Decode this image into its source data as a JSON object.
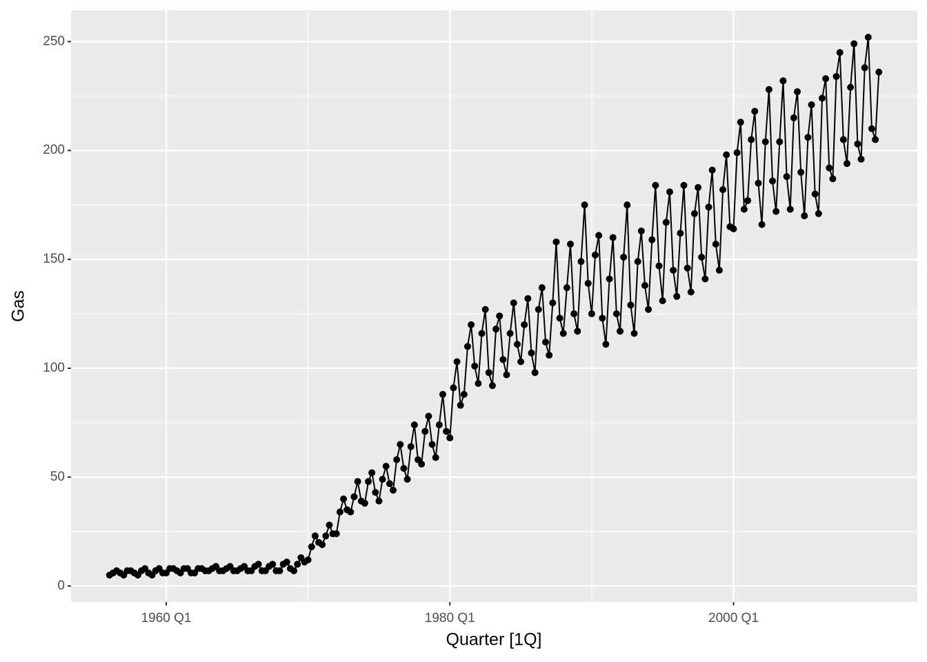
{
  "chart_data": {
    "type": "line",
    "x_label": "Quarter [1Q]",
    "y_label": "Gas",
    "color": "#000000",
    "markers": true,
    "grid": true,
    "x": [
      "1956 Q1",
      "1956 Q2",
      "1956 Q3",
      "1956 Q4",
      "1957 Q1",
      "1957 Q2",
      "1957 Q3",
      "1957 Q4",
      "1958 Q1",
      "1958 Q2",
      "1958 Q3",
      "1958 Q4",
      "1959 Q1",
      "1959 Q2",
      "1959 Q3",
      "1959 Q4",
      "1960 Q1",
      "1960 Q2",
      "1960 Q3",
      "1960 Q4",
      "1961 Q1",
      "1961 Q2",
      "1961 Q3",
      "1961 Q4",
      "1962 Q1",
      "1962 Q2",
      "1962 Q3",
      "1962 Q4",
      "1963 Q1",
      "1963 Q2",
      "1963 Q3",
      "1963 Q4",
      "1964 Q1",
      "1964 Q2",
      "1964 Q3",
      "1964 Q4",
      "1965 Q1",
      "1965 Q2",
      "1965 Q3",
      "1965 Q4",
      "1966 Q1",
      "1966 Q2",
      "1966 Q3",
      "1966 Q4",
      "1967 Q1",
      "1967 Q2",
      "1967 Q3",
      "1967 Q4",
      "1968 Q1",
      "1968 Q2",
      "1968 Q3",
      "1968 Q4",
      "1969 Q1",
      "1969 Q2",
      "1969 Q3",
      "1969 Q4",
      "1970 Q1",
      "1970 Q2",
      "1970 Q3",
      "1970 Q4",
      "1971 Q1",
      "1971 Q2",
      "1971 Q3",
      "1971 Q4",
      "1972 Q1",
      "1972 Q2",
      "1972 Q3",
      "1972 Q4",
      "1973 Q1",
      "1973 Q2",
      "1973 Q3",
      "1973 Q4",
      "1974 Q1",
      "1974 Q2",
      "1974 Q3",
      "1974 Q4",
      "1975 Q1",
      "1975 Q2",
      "1975 Q3",
      "1975 Q4",
      "1976 Q1",
      "1976 Q2",
      "1976 Q3",
      "1976 Q4",
      "1977 Q1",
      "1977 Q2",
      "1977 Q3",
      "1977 Q4",
      "1978 Q1",
      "1978 Q2",
      "1978 Q3",
      "1978 Q4",
      "1979 Q1",
      "1979 Q2",
      "1979 Q3",
      "1979 Q4",
      "1980 Q1",
      "1980 Q2",
      "1980 Q3",
      "1980 Q4",
      "1981 Q1",
      "1981 Q2",
      "1981 Q3",
      "1981 Q4",
      "1982 Q1",
      "1982 Q2",
      "1982 Q3",
      "1982 Q4",
      "1983 Q1",
      "1983 Q2",
      "1983 Q3",
      "1983 Q4",
      "1984 Q1",
      "1984 Q2",
      "1984 Q3",
      "1984 Q4",
      "1985 Q1",
      "1985 Q2",
      "1985 Q3",
      "1985 Q4",
      "1986 Q1",
      "1986 Q2",
      "1986 Q3",
      "1986 Q4",
      "1987 Q1",
      "1987 Q2",
      "1987 Q3",
      "1987 Q4",
      "1988 Q1",
      "1988 Q2",
      "1988 Q3",
      "1988 Q4",
      "1989 Q1",
      "1989 Q2",
      "1989 Q3",
      "1989 Q4",
      "1990 Q1",
      "1990 Q2",
      "1990 Q3",
      "1990 Q4",
      "1991 Q1",
      "1991 Q2",
      "1991 Q3",
      "1991 Q4",
      "1992 Q1",
      "1992 Q2",
      "1992 Q3",
      "1992 Q4",
      "1993 Q1",
      "1993 Q2",
      "1993 Q3",
      "1993 Q4",
      "1994 Q1",
      "1994 Q2",
      "1994 Q3",
      "1994 Q4",
      "1995 Q1",
      "1995 Q2",
      "1995 Q3",
      "1995 Q4",
      "1996 Q1",
      "1996 Q2",
      "1996 Q3",
      "1996 Q4",
      "1997 Q1",
      "1997 Q2",
      "1997 Q3",
      "1997 Q4",
      "1998 Q1",
      "1998 Q2",
      "1998 Q3",
      "1998 Q4",
      "1999 Q1",
      "1999 Q2",
      "1999 Q3",
      "1999 Q4",
      "2000 Q1",
      "2000 Q2",
      "2000 Q3",
      "2000 Q4",
      "2001 Q1",
      "2001 Q2",
      "2001 Q3",
      "2001 Q4",
      "2002 Q1",
      "2002 Q2",
      "2002 Q3",
      "2002 Q4",
      "2003 Q1",
      "2003 Q2",
      "2003 Q3",
      "2003 Q4",
      "2004 Q1",
      "2004 Q2",
      "2004 Q3",
      "2004 Q4",
      "2005 Q1",
      "2005 Q2",
      "2005 Q3",
      "2005 Q4",
      "2006 Q1",
      "2006 Q2",
      "2006 Q3",
      "2006 Q4",
      "2007 Q1",
      "2007 Q2",
      "2007 Q3",
      "2007 Q4",
      "2008 Q1",
      "2008 Q2",
      "2008 Q3",
      "2008 Q4",
      "2009 Q1",
      "2009 Q2",
      "2009 Q3",
      "2009 Q4",
      "2010 Q1",
      "2010 Q2"
    ],
    "values": [
      5,
      6,
      7,
      6,
      5,
      7,
      7,
      6,
      5,
      7,
      8,
      6,
      5,
      7,
      8,
      6,
      6,
      8,
      8,
      7,
      6,
      8,
      8,
      6,
      6,
      8,
      8,
      7,
      7,
      8,
      9,
      7,
      7,
      8,
      9,
      7,
      7,
      8,
      9,
      7,
      7,
      9,
      10,
      7,
      7,
      9,
      10,
      7,
      7,
      10,
      11,
      8,
      7,
      10,
      13,
      11,
      12,
      18,
      23,
      20,
      19,
      23,
      28,
      24,
      24,
      34,
      40,
      35,
      34,
      41,
      48,
      39,
      38,
      48,
      52,
      43,
      39,
      49,
      55,
      47,
      44,
      58,
      65,
      54,
      49,
      64,
      74,
      58,
      56,
      71,
      78,
      65,
      59,
      74,
      88,
      71,
      68,
      91,
      103,
      83,
      88,
      110,
      120,
      101,
      93,
      116,
      127,
      98,
      92,
      118,
      124,
      104,
      97,
      116,
      130,
      111,
      103,
      120,
      132,
      107,
      98,
      127,
      137,
      112,
      106,
      130,
      158,
      123,
      116,
      137,
      157,
      125,
      117,
      149,
      175,
      139,
      125,
      152,
      161,
      123,
      111,
      141,
      160,
      125,
      117,
      151,
      175,
      129,
      116,
      149,
      163,
      138,
      127,
      159,
      184,
      147,
      131,
      167,
      181,
      145,
      133,
      162,
      184,
      146,
      135,
      171,
      183,
      151,
      141,
      174,
      191,
      157,
      145,
      182,
      198,
      165,
      164,
      199,
      213,
      173,
      177,
      205,
      218,
      185,
      166,
      204,
      228,
      186,
      172,
      204,
      232,
      188,
      173,
      215,
      227,
      190,
      170,
      206,
      221,
      180,
      171,
      224,
      233,
      192,
      187,
      234,
      245,
      205,
      194,
      229,
      249,
      203,
      196,
      238,
      252,
      210,
      205,
      236
    ],
    "xticks": [
      "1960 Q1",
      "1980 Q1",
      "2000 Q1"
    ],
    "x_minor_ticks": [
      "1970 Q1",
      "1990 Q1"
    ],
    "ylim": [
      -7.35,
      264.35
    ],
    "yticks": [
      0,
      50,
      100,
      150,
      200,
      250
    ],
    "y_minor_ticks": [
      25,
      75,
      125,
      175,
      225
    ]
  }
}
